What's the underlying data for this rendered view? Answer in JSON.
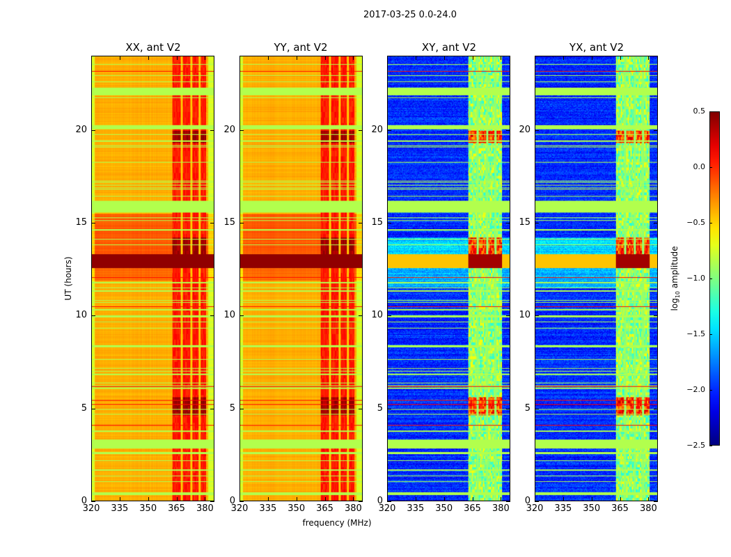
{
  "chart_data": {
    "type": "heatmap",
    "title": "2017-03-25 0.0-24.0",
    "xlabel": "frequency (MHz)",
    "ylabel": "UT (hours)",
    "xlim": [
      320,
      385
    ],
    "ylim": [
      0,
      24
    ],
    "xticks": [
      320,
      335,
      350,
      365,
      380
    ],
    "yticks": [
      0,
      5,
      10,
      15,
      20
    ],
    "panels": [
      {
        "title": "XX, ant V2",
        "kind": "auto"
      },
      {
        "title": "YY, ant V2",
        "kind": "auto"
      },
      {
        "title": "XY, ant V2",
        "kind": "cross"
      },
      {
        "title": "YX, ant V2",
        "kind": "cross"
      }
    ],
    "colorbar": {
      "label_main": "log",
      "label_sub": "10",
      "label_rest": " amplitude",
      "range": [
        -2.5,
        0.5
      ],
      "ticks": [
        "0.5",
        "0.0",
        "−0.5",
        "−1.0",
        "−1.5",
        "−2.0",
        "−2.5"
      ],
      "tick_values": [
        0.5,
        0.0,
        -0.5,
        -1.0,
        -1.5,
        -2.0,
        -2.5
      ],
      "colormap": "jet"
    },
    "levels": {
      "auto_base": -0.45,
      "auto_rfi_band": -0.05,
      "cross_base": -2.3,
      "cross_rfi_band": -0.95,
      "flagged": -0.85,
      "red_line": 0.1,
      "dark_band": 0.45
    },
    "rfi_band_mhz": [
      363,
      381
    ],
    "rfi_gaps_mhz": [
      368,
      373,
      377.5
    ],
    "dark_band_hours": [
      12.55,
      13.3
    ],
    "bright_block_hours": [
      [
        19.3,
        20.0
      ],
      [
        13.3,
        14.2
      ],
      [
        4.6,
        5.6
      ]
    ],
    "flagged_hours": [
      [
        21.9,
        22.3
      ],
      [
        22.6,
        22.65
      ],
      [
        20.05,
        20.3
      ],
      [
        19.4,
        19.45
      ],
      [
        16.8,
        16.85
      ],
      [
        15.55,
        16.15
      ],
      [
        14.6,
        14.65
      ],
      [
        13.8,
        13.85
      ],
      [
        11.3,
        11.35
      ],
      [
        9.9,
        10.0
      ],
      [
        9.3,
        9.35
      ],
      [
        8.3,
        8.4
      ],
      [
        7.6,
        7.65
      ],
      [
        6.8,
        6.85
      ],
      [
        4.9,
        4.95
      ],
      [
        3.7,
        3.8
      ],
      [
        2.8,
        3.3
      ],
      [
        2.5,
        2.6
      ],
      [
        1.6,
        1.7
      ],
      [
        1.0,
        1.05
      ],
      [
        0.3,
        0.45
      ]
    ],
    "red_line_hours": [
      23.2,
      23.0,
      19.8,
      18.3,
      12.07,
      10.5,
      10.35,
      6.2,
      5.45,
      5.2,
      4.1
    ]
  }
}
